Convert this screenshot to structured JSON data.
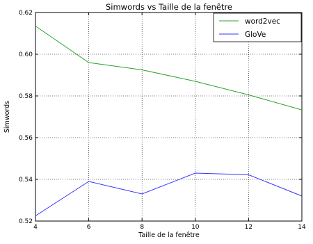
{
  "chart_data": {
    "type": "line",
    "title": "Simwords vs Taille de la fenêtre",
    "xlabel": "Taille de la fenêtre",
    "ylabel": "Simwords",
    "x": [
      4,
      6,
      8,
      10,
      12,
      14
    ],
    "xlim": [
      4,
      14
    ],
    "ylim": [
      0.52,
      0.62
    ],
    "xticks": [
      4,
      6,
      8,
      10,
      12,
      14
    ],
    "yticks": [
      0.52,
      0.54,
      0.56,
      0.58,
      0.6,
      0.62
    ],
    "xtick_labels": [
      "4",
      "6",
      "8",
      "10",
      "12",
      "14"
    ],
    "ytick_labels": [
      "0.52",
      "0.54",
      "0.56",
      "0.58",
      "0.60",
      "0.62"
    ],
    "grid": true,
    "legend_position": "top-right",
    "series": [
      {
        "name": "word2vec",
        "color": "#2ca02c",
        "values": [
          0.6135,
          0.596,
          0.5925,
          0.587,
          0.5805,
          0.5733
        ]
      },
      {
        "name": "GloVe",
        "color": "#3333ff",
        "values": [
          0.5225,
          0.539,
          0.533,
          0.543,
          0.5422,
          0.532
        ]
      }
    ]
  }
}
